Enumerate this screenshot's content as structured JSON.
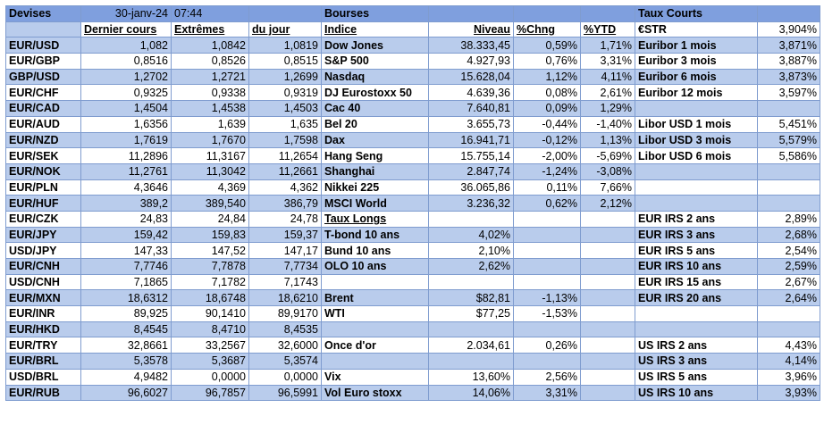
{
  "header": {
    "devises": "Devises",
    "date": "30-janv-24",
    "time": "07:44",
    "bourses": "Bourses",
    "taux_courts": "Taux Courts"
  },
  "columns": {
    "dernier": "Dernier cours",
    "extremes": "Extrêmes",
    "du_jour": "du jour",
    "indice": "Indice",
    "niveau": "Niveau",
    "chng": "%Chng",
    "ytd": "%YTD"
  },
  "fx": [
    {
      "pair": "EUR/USD",
      "last": "1,082",
      "ext": "1,0842",
      "day": "1,0819"
    },
    {
      "pair": "EUR/GBP",
      "last": "0,8516",
      "ext": "0,8526",
      "day": "0,8515"
    },
    {
      "pair": "GBP/USD",
      "last": "1,2702",
      "ext": "1,2721",
      "day": "1,2699"
    },
    {
      "pair": "EUR/CHF",
      "last": "0,9325",
      "ext": "0,9338",
      "day": "0,9319"
    },
    {
      "pair": "EUR/CAD",
      "last": "1,4504",
      "ext": "1,4538",
      "day": "1,4503"
    },
    {
      "pair": "EUR/AUD",
      "last": "1,6356",
      "ext": "1,639",
      "day": "1,635"
    },
    {
      "pair": "EUR/NZD",
      "last": "1,7619",
      "ext": "1,7670",
      "day": "1,7598"
    },
    {
      "pair": "EUR/SEK",
      "last": "11,2896",
      "ext": "11,3167",
      "day": "11,2654"
    },
    {
      "pair": "EUR/NOK",
      "last": "11,2761",
      "ext": "11,3042",
      "day": "11,2661"
    },
    {
      "pair": "EUR/PLN",
      "last": "4,3646",
      "ext": "4,369",
      "day": "4,362"
    },
    {
      "pair": "EUR/HUF",
      "last": "389,2",
      "ext": "389,540",
      "day": "386,79"
    },
    {
      "pair": "EUR/CZK",
      "last": "24,83",
      "ext": "24,84",
      "day": "24,78"
    },
    {
      "pair": "EUR/JPY",
      "last": "159,42",
      "ext": "159,83",
      "day": "159,37"
    },
    {
      "pair": "USD/JPY",
      "last": "147,33",
      "ext": "147,52",
      "day": "147,17"
    },
    {
      "pair": "EUR/CNH",
      "last": "7,7746",
      "ext": "7,7878",
      "day": "7,7734"
    },
    {
      "pair": "USD/CNH",
      "last": "7,1865",
      "ext": "7,1782",
      "day": "7,1743"
    },
    {
      "pair": "EUR/MXN",
      "last": "18,6312",
      "ext": "18,6748",
      "day": "18,6210"
    },
    {
      "pair": "EUR/INR",
      "last": "89,925",
      "ext": "90,1410",
      "day": "89,9170"
    },
    {
      "pair": "EUR/HKD",
      "last": "8,4545",
      "ext": "8,4710",
      "day": "8,4535"
    },
    {
      "pair": "EUR/TRY",
      "last": "32,8661",
      "ext": "33,2567",
      "day": "32,6000"
    },
    {
      "pair": "EUR/BRL",
      "last": "5,3578",
      "ext": "5,3687",
      "day": "5,3574"
    },
    {
      "pair": "USD/BRL",
      "last": "4,9482",
      "ext": "0,0000",
      "day": "0,0000"
    },
    {
      "pair": "EUR/RUB",
      "last": "96,6027",
      "ext": "96,7857",
      "day": "96,5991"
    }
  ],
  "markets": [
    {
      "name": "Dow Jones",
      "level": "38.333,45",
      "chng": "0,59%",
      "ytd": "1,71%"
    },
    {
      "name": "S&P 500",
      "level": "4.927,93",
      "chng": "0,76%",
      "ytd": "3,31%"
    },
    {
      "name": "Nasdaq",
      "level": "15.628,04",
      "chng": "1,12%",
      "ytd": "4,11%"
    },
    {
      "name": "DJ Eurostoxx 50",
      "level": "4.639,36",
      "chng": "0,08%",
      "ytd": "2,61%"
    },
    {
      "name": "Cac 40",
      "level": "7.640,81",
      "chng": "0,09%",
      "ytd": "1,29%"
    },
    {
      "name": "Bel 20",
      "level": "3.655,73",
      "chng": "-0,44%",
      "ytd": "-1,40%"
    },
    {
      "name": "Dax",
      "level": "16.941,71",
      "chng": "-0,12%",
      "ytd": "1,13%"
    },
    {
      "name": "Hang Seng",
      "level": "15.755,14",
      "chng": "-2,00%",
      "ytd": "-5,69%"
    },
    {
      "name": "Shanghai",
      "level": "2.847,74",
      "chng": "-1,24%",
      "ytd": "-3,08%"
    },
    {
      "name": "Nikkei 225",
      "level": "36.065,86",
      "chng": "0,11%",
      "ytd": "7,66%"
    },
    {
      "name": "MSCI World",
      "level": "3.236,32",
      "chng": "0,62%",
      "ytd": "2,12%"
    },
    {
      "name": "Taux Longs",
      "level": "",
      "chng": "",
      "ytd": ""
    },
    {
      "name": "T-bond 10 ans",
      "level": "4,02%",
      "chng": "",
      "ytd": ""
    },
    {
      "name": "Bund 10 ans",
      "level": "2,10%",
      "chng": "",
      "ytd": ""
    },
    {
      "name": "OLO 10 ans",
      "level": "2,62%",
      "chng": "",
      "ytd": ""
    },
    {
      "name": "",
      "level": "",
      "chng": "",
      "ytd": ""
    },
    {
      "name": "Brent",
      "level": "$82,81",
      "chng": "-1,13%",
      "ytd": ""
    },
    {
      "name": "WTI",
      "level": "$77,25",
      "chng": "-1,53%",
      "ytd": ""
    },
    {
      "name": "",
      "level": "",
      "chng": "",
      "ytd": ""
    },
    {
      "name": "Once d'or",
      "level": "2.034,61",
      "chng": "0,26%",
      "ytd": ""
    },
    {
      "name": "",
      "level": "",
      "chng": "",
      "ytd": ""
    },
    {
      "name": "Vix",
      "level": "13,60%",
      "chng": "2,56%",
      "ytd": ""
    },
    {
      "name": "Vol Euro stoxx",
      "level": "14,06%",
      "chng": "3,31%",
      "ytd": ""
    }
  ],
  "rates": [
    {
      "name": "€STR",
      "value": "3,904%"
    },
    {
      "name": "Euribor 1 mois",
      "value": "3,871%"
    },
    {
      "name": "Euribor 3 mois",
      "value": "3,887%"
    },
    {
      "name": "Euribor 6 mois",
      "value": "3,873%"
    },
    {
      "name": "Euribor 12 mois",
      "value": "3,597%"
    },
    {
      "name": "",
      "value": ""
    },
    {
      "name": "Libor USD 1 mois",
      "value": "5,451%"
    },
    {
      "name": "Libor USD 3 mois",
      "value": "5,579%"
    },
    {
      "name": "Libor USD 6 mois",
      "value": "5,586%"
    },
    {
      "name": "",
      "value": ""
    },
    {
      "name": "",
      "value": ""
    },
    {
      "name": "",
      "value": ""
    },
    {
      "name": "EUR IRS 2 ans",
      "value": "2,89%"
    },
    {
      "name": "EUR IRS 3 ans",
      "value": "2,68%"
    },
    {
      "name": "EUR IRS 5 ans",
      "value": "2,54%"
    },
    {
      "name": "EUR IRS 10 ans",
      "value": "2,59%"
    },
    {
      "name": "EUR IRS 15 ans",
      "value": "2,67%"
    },
    {
      "name": "EUR IRS 20 ans",
      "value": "2,64%"
    },
    {
      "name": "",
      "value": ""
    },
    {
      "name": "",
      "value": ""
    },
    {
      "name": "US IRS 2 ans",
      "value": "4,43%"
    },
    {
      "name": "US IRS 3 ans",
      "value": "4,14%"
    },
    {
      "name": "US IRS 5 ans",
      "value": "3,96%"
    },
    {
      "name": "US IRS 10 ans",
      "value": "3,93%"
    }
  ],
  "colors": {
    "header": "#7f9fde",
    "band": "#b9ccec",
    "border": "#7f9ccf"
  }
}
